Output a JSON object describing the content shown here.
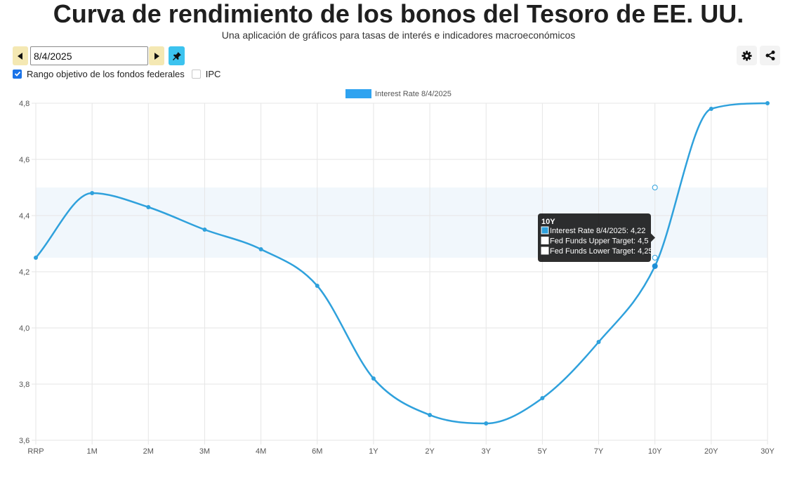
{
  "header": {
    "title": "Curva de rendimiento de los bonos del Tesoro de EE. UU.",
    "subtitle": "Una aplicación de gráficos para tasas de interés e indicadores macroeconómicos"
  },
  "controls": {
    "date_value": "8/4/2025",
    "prev_icon": "caret-left-icon",
    "next_icon": "caret-right-icon",
    "pin_icon": "pin-icon",
    "settings_icon": "gear-icon",
    "share_icon": "share-icon"
  },
  "checkboxes": [
    {
      "label": "Rango objetivo de los fondos federales",
      "checked": true
    },
    {
      "label": "IPC",
      "checked": false
    }
  ],
  "colors": {
    "series": "#2fa1dc",
    "band": "#f1f7fc",
    "accent_blue": "#1a73e8",
    "pin_button": "#3cc3ef",
    "nav_button": "#f4e8b3"
  },
  "chart_data": {
    "type": "line",
    "categories": [
      "RRP",
      "1M",
      "2M",
      "3M",
      "4M",
      "6M",
      "1Y",
      "2Y",
      "3Y",
      "5Y",
      "7Y",
      "10Y",
      "20Y",
      "30Y"
    ],
    "series": [
      {
        "name": "Interest Rate 8/4/2025",
        "values": [
          4.25,
          4.48,
          4.43,
          4.35,
          4.28,
          4.15,
          3.82,
          3.69,
          3.66,
          3.75,
          3.95,
          4.22,
          4.78,
          4.8
        ]
      }
    ],
    "fed_funds_band": {
      "upper": 4.5,
      "lower": 4.25
    },
    "ylim": [
      3.6,
      4.8
    ],
    "yticks": [
      "4,8",
      "4,6",
      "4,4",
      "4,2",
      "4,0",
      "3,8",
      "3,6"
    ],
    "grid": true,
    "legend": "top-center",
    "tooltip": {
      "category": "10Y",
      "title": "10Y",
      "lines": [
        "Interest Rate 8/4/2025: 4,22",
        "Fed Funds Upper Target: 4,5",
        "Fed Funds Lower Target: 4,25"
      ]
    }
  }
}
